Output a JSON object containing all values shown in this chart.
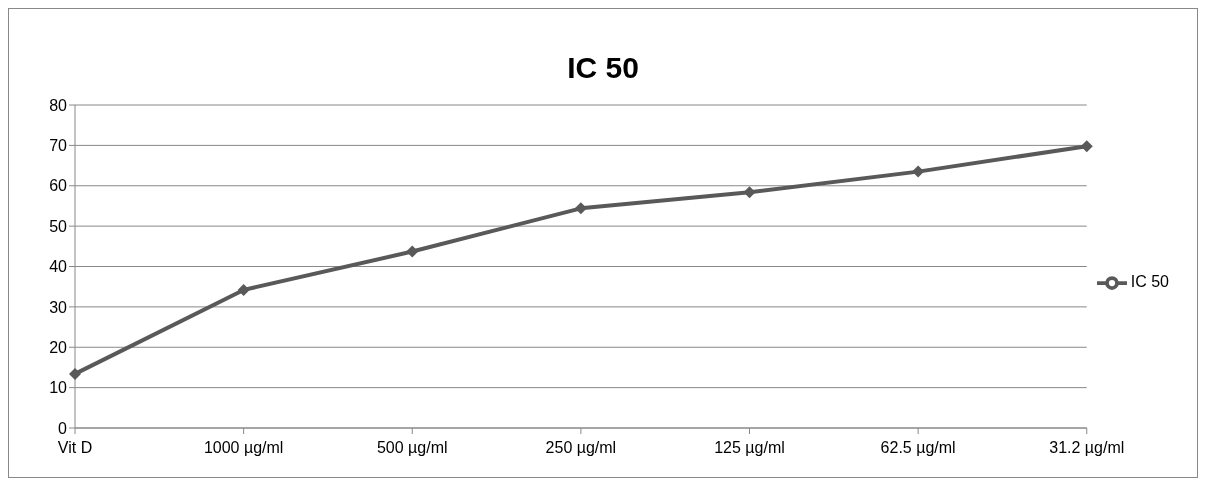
{
  "chart_data": {
    "type": "line",
    "title": "IC 50",
    "categories": [
      "Vit D",
      "1000 µg/ml",
      "500 µg/ml",
      "250 µg/ml",
      "125 µg/ml",
      "62.5 µg/ml",
      "31.2 µg/ml"
    ],
    "series": [
      {
        "name": "IC 50",
        "color": "#595959",
        "values": [
          13.4,
          34.2,
          43.7,
          54.4,
          58.4,
          63.5,
          69.8
        ]
      }
    ],
    "ylim": [
      0,
      80
    ],
    "yticks": [
      0,
      10,
      20,
      30,
      40,
      50,
      60,
      70,
      80
    ],
    "grid": "y",
    "legend": "right",
    "marker": "diamond",
    "line_style": "solid"
  }
}
